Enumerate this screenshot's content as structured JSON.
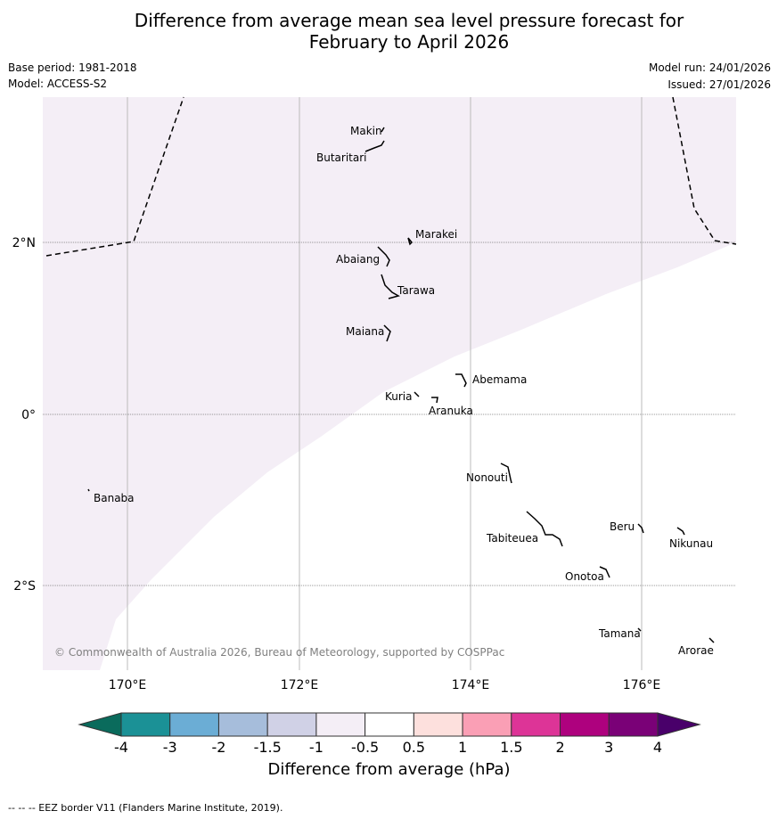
{
  "title_line1": "Difference from average mean sea level pressure forecast for",
  "title_line2": "February to April 2026",
  "base_period": "Base period: 1981-2018",
  "model": "Model: ACCESS-S2",
  "model_run": "Model run: 24/01/2026",
  "issued": "Issued: 27/01/2026",
  "lon_labels": [
    "170°E",
    "172°E",
    "174°E",
    "176°E"
  ],
  "lat_labels": [
    "2°N",
    "0°",
    "2°S"
  ],
  "places": [
    "Makin",
    "Butaritari",
    "Marakei",
    "Abaiang",
    "Tarawa",
    "Maiana",
    "Abemama",
    "Kuria",
    "Aranuka",
    "Banaba",
    "Nonouti",
    "Beru",
    "Nikunau",
    "Tabiteuea",
    "Onotoa",
    "Tamana",
    "Arorae"
  ],
  "copyright": "© Commonwealth of Australia 2026, Bureau of Meteorology, supported by COSPPac",
  "colorbar": {
    "ticks": [
      "-4",
      "-3",
      "-2",
      "-1.5",
      "-1",
      "-0.5",
      "0.5",
      "1",
      "1.5",
      "2",
      "3",
      "4"
    ],
    "colors": [
      "#1b9196",
      "#6badd5",
      "#a6bddb",
      "#d0d1e6",
      "#f4eef6",
      "#ffffff",
      "#fde0dd",
      "#fa9fb5",
      "#dd3497",
      "#ae017e",
      "#7a0177"
    ],
    "under_color": "#0a6b5c",
    "over_color": "#49006a",
    "label": "Difference from average (hPa)"
  },
  "forecast_fill_color": "#f4eef6",
  "footer": "--  --  -- EEZ border V11 (Flanders Marine Institute, 2019)."
}
